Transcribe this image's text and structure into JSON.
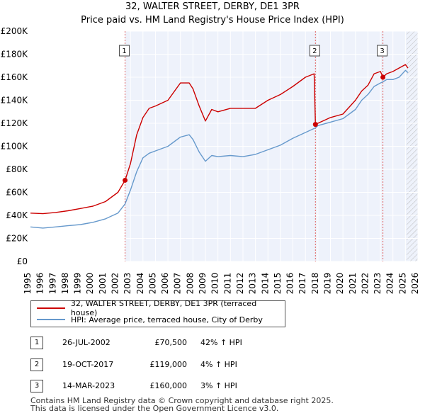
{
  "title_line1": "32, WALTER STREET, DERBY, DE1 3PR",
  "title_line2": "Price paid vs. HM Land Registry's House Price Index (HPI)",
  "colors": {
    "property": "#cc0000",
    "hpi": "#6699cc",
    "plot_bg": "#eef2fb",
    "grid": "#ffffff",
    "marker_line": "#e06060",
    "hatch": "#bbbbbb"
  },
  "legend": {
    "property_label": "32, WALTER STREET, DERBY, DE1 3PR (terraced house)",
    "hpi_label": "HPI: Average price, terraced house, City of Derby"
  },
  "transactions": [
    {
      "num": "1",
      "date": "26-JUL-2002",
      "price": "£70,500",
      "hpi": "42% ↑ HPI",
      "year": 2002.57,
      "value": 70500
    },
    {
      "num": "2",
      "date": "19-OCT-2017",
      "price": "£119,000",
      "hpi": "4% ↑ HPI",
      "year": 2017.8,
      "value": 119000
    },
    {
      "num": "3",
      "date": "14-MAR-2023",
      "price": "£160,000",
      "hpi": "3% ↑ HPI",
      "year": 2023.2,
      "value": 160000
    }
  ],
  "footer_line1": "Contains HM Land Registry data © Crown copyright and database right 2025.",
  "footer_line2": "This data is licensed under the Open Government Licence v3.0.",
  "chart_data": {
    "type": "line",
    "title": "32, WALTER STREET, DERBY, DE1 3PR",
    "subtitle": "Price paid vs. HM Land Registry's House Price Index (HPI)",
    "xlabel": "",
    "ylabel": "",
    "xlim": [
      1995,
      2026
    ],
    "ylim": [
      0,
      200000
    ],
    "x_ticks": [
      1995,
      1996,
      1997,
      1998,
      1999,
      2000,
      2001,
      2002,
      2003,
      2004,
      2005,
      2006,
      2007,
      2008,
      2009,
      2010,
      2011,
      2012,
      2013,
      2014,
      2015,
      2016,
      2017,
      2018,
      2019,
      2020,
      2021,
      2022,
      2023,
      2024,
      2025,
      2026
    ],
    "y_ticks": [
      0,
      20000,
      40000,
      60000,
      80000,
      100000,
      120000,
      140000,
      160000,
      180000,
      200000
    ],
    "y_tick_labels": [
      "£0",
      "£20K",
      "£40K",
      "£60K",
      "£80K",
      "£100K",
      "£120K",
      "£140K",
      "£160K",
      "£180K",
      "£200K"
    ],
    "grid": true,
    "hatched_from_year": 2025.1,
    "series": [
      {
        "name": "32, WALTER STREET, DERBY, DE1 3PR (terraced house)",
        "x": [
          1995,
          1996,
          1997,
          1998,
          1999,
          2000,
          2001,
          2002,
          2002.57,
          2003,
          2003.5,
          2004,
          2004.5,
          2005,
          2006,
          2007,
          2007.7,
          2008,
          2008.5,
          2009,
          2009.5,
          2010,
          2011,
          2012,
          2013,
          2014,
          2015,
          2016,
          2017,
          2017.7,
          2017.8,
          2018,
          2019,
          2020,
          2021,
          2021.5,
          2022,
          2022.5,
          2023,
          2023.2,
          2023.5,
          2024,
          2024.5,
          2025,
          2025.2
        ],
        "values": [
          42000,
          41500,
          42500,
          44000,
          46000,
          48000,
          52000,
          60000,
          70500,
          85000,
          110000,
          125000,
          133000,
          135000,
          140000,
          155000,
          155000,
          150000,
          135000,
          122000,
          132000,
          130000,
          133000,
          133000,
          133000,
          140000,
          145000,
          152000,
          160000,
          163000,
          119000,
          120000,
          125000,
          128000,
          140000,
          148000,
          153000,
          163000,
          165000,
          160000,
          163000,
          165000,
          168000,
          171000,
          168000
        ]
      },
      {
        "name": "HPI: Average price, terraced house, City of Derby",
        "x": [
          1995,
          1996,
          1997,
          1998,
          1999,
          2000,
          2001,
          2002,
          2002.57,
          2003,
          2003.5,
          2004,
          2004.5,
          2005,
          2006,
          2007,
          2007.7,
          2008,
          2008.5,
          2009,
          2009.5,
          2010,
          2011,
          2012,
          2013,
          2014,
          2015,
          2016,
          2017,
          2017.8,
          2018,
          2019,
          2020,
          2021,
          2021.5,
          2022,
          2022.5,
          2023,
          2023.2,
          2023.5,
          2024,
          2024.5,
          2025,
          2025.2
        ],
        "values": [
          30000,
          29000,
          30000,
          31000,
          32000,
          34000,
          37000,
          42000,
          50000,
          62000,
          78000,
          90000,
          94000,
          96000,
          100000,
          108000,
          110000,
          106000,
          95000,
          87000,
          92000,
          91000,
          92000,
          91000,
          93000,
          97000,
          101000,
          107000,
          112000,
          116000,
          118000,
          121000,
          124000,
          132000,
          140000,
          145000,
          152000,
          155000,
          156000,
          158000,
          158000,
          160000,
          166000,
          164000
        ]
      }
    ]
  }
}
